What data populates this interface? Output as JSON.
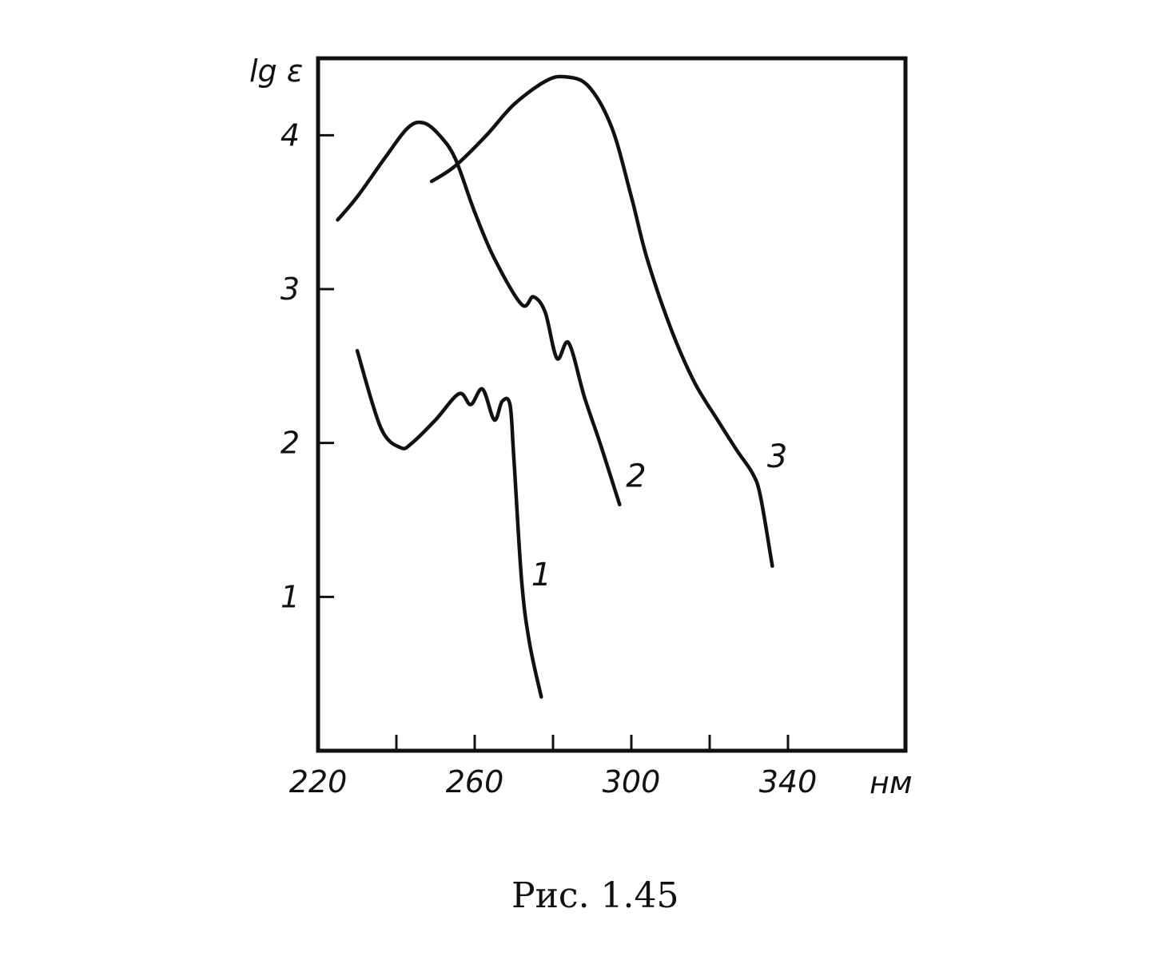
{
  "chart_data": {
    "type": "line",
    "title": "",
    "xlabel": "нм",
    "ylabel": "lg ε",
    "xlim": [
      220,
      370
    ],
    "ylim": [
      0,
      4.5
    ],
    "x_ticks": [
      220,
      240,
      260,
      280,
      300,
      320,
      340
    ],
    "x_tick_labels": [
      "220",
      "260",
      "300",
      "340"
    ],
    "y_ticks": [
      1,
      2,
      3,
      4
    ],
    "y_tick_labels": [
      "1",
      "2",
      "3",
      "4"
    ],
    "grid": false,
    "series": [
      {
        "name": "1",
        "points": [
          [
            230,
            2.6
          ],
          [
            236,
            2.1
          ],
          [
            241,
            1.97
          ],
          [
            244,
            2.0
          ],
          [
            250,
            2.15
          ],
          [
            256,
            2.32
          ],
          [
            259,
            2.25
          ],
          [
            262,
            2.35
          ],
          [
            265,
            2.15
          ],
          [
            267,
            2.27
          ],
          [
            269,
            2.25
          ],
          [
            270,
            1.9
          ],
          [
            272,
            1.1
          ],
          [
            274,
            0.7
          ],
          [
            277,
            0.35
          ]
        ]
      },
      {
        "name": "2",
        "points": [
          [
            225,
            3.45
          ],
          [
            230,
            3.6
          ],
          [
            237,
            3.85
          ],
          [
            243,
            4.05
          ],
          [
            247,
            4.08
          ],
          [
            251,
            4.0
          ],
          [
            255,
            3.85
          ],
          [
            260,
            3.5
          ],
          [
            265,
            3.2
          ],
          [
            272,
            2.9
          ],
          [
            275,
            2.95
          ],
          [
            278,
            2.85
          ],
          [
            281,
            2.55
          ],
          [
            284,
            2.65
          ],
          [
            288,
            2.3
          ],
          [
            292,
            2.0
          ],
          [
            297,
            1.6
          ]
        ]
      },
      {
        "name": "3",
        "points": [
          [
            249,
            3.7
          ],
          [
            255,
            3.8
          ],
          [
            263,
            4.0
          ],
          [
            270,
            4.2
          ],
          [
            278,
            4.35
          ],
          [
            283,
            4.38
          ],
          [
            289,
            4.32
          ],
          [
            295,
            4.05
          ],
          [
            300,
            3.6
          ],
          [
            304,
            3.2
          ],
          [
            310,
            2.75
          ],
          [
            316,
            2.4
          ],
          [
            322,
            2.15
          ],
          [
            327,
            1.95
          ],
          [
            331,
            1.8
          ],
          [
            333,
            1.65
          ],
          [
            336,
            1.2
          ]
        ]
      }
    ],
    "curve_labels": [
      "1",
      "2",
      "3"
    ],
    "caption": "Рис. 1.45"
  }
}
